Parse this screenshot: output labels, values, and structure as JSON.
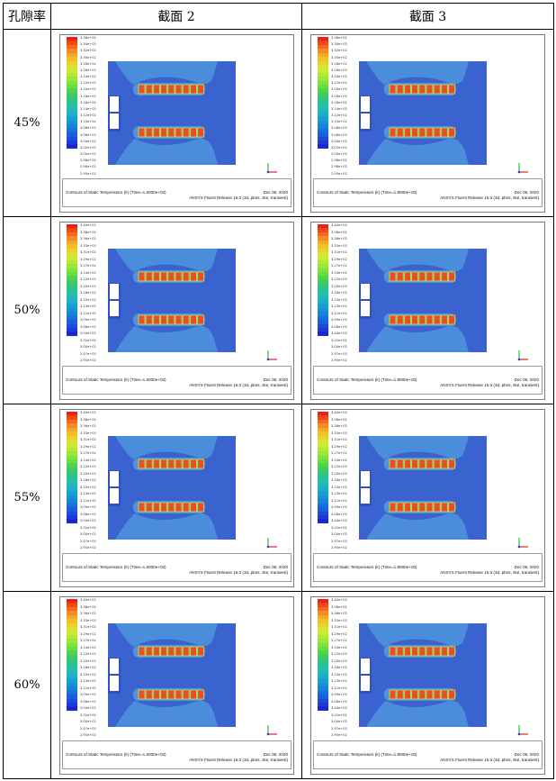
{
  "table": {
    "headers": [
      "孔隙率",
      "截面 2",
      "截面 3"
    ],
    "rows": [
      {
        "porosity": "45%"
      },
      {
        "porosity": "50%"
      },
      {
        "porosity": "55%"
      },
      {
        "porosity": "60%"
      }
    ]
  },
  "colorbar_colors": [
    "#e8231a",
    "#f2451a",
    "#f66a1e",
    "#f68a21",
    "#f3a926",
    "#efc22a",
    "#e9d42e",
    "#dde331",
    "#c8ea34",
    "#b0ec36",
    "#97e939",
    "#7fe43c",
    "#66dd40",
    "#4fd448",
    "#3fcb63",
    "#33c47e",
    "#2ac097",
    "#24bcab",
    "#1eb6bd",
    "#1aaec9",
    "#17a2d2",
    "#1593d8",
    "#1582dc",
    "#1770df",
    "#195edf",
    "#1b4bdc",
    "#1c39d6",
    "#1c28cf"
  ],
  "colorbar_sets": {
    "a": [
      "3.36e+02",
      "3.34e+02",
      "3.32e+02",
      "3.30e+02",
      "3.28e+02",
      "3.26e+02",
      "3.24e+02",
      "3.22e+02",
      "3.20e+02",
      "3.18e+02",
      "3.16e+02",
      "3.14e+02",
      "3.12e+02",
      "3.10e+02",
      "3.08e+02",
      "3.06e+02",
      "3.04e+02",
      "3.02e+02",
      "3.00e+02",
      "2.98e+02",
      "2.96e+02",
      "2.95e+02"
    ],
    "b": [
      "3.40e+02",
      "3.38e+02",
      "3.36e+02",
      "3.33e+02",
      "3.31e+02",
      "3.29e+02",
      "3.27e+02",
      "3.24e+02",
      "3.22e+02",
      "3.20e+02",
      "3.18e+02",
      "3.15e+02",
      "3.13e+02",
      "3.11e+02",
      "3.09e+02",
      "3.06e+02",
      "3.04e+02",
      "3.02e+02",
      "3.00e+02",
      "2.97e+02",
      "2.95e+02"
    ]
  },
  "colors": {
    "domain_bg": "#3a63cf",
    "domain_dark": "#2f4fc2",
    "plume": "#4b8ddb",
    "plume_light": "#63b3df",
    "fin_fill": "#e2512e",
    "fin_edge": "#c9e14a"
  },
  "footer": {
    "title": "Contours of Static Temperature (k)  (Time=1.8000e+03)",
    "date": "Dec 06, 2020",
    "release": "ANSYS Fluent Release 16.0 (3d, pbns, ske, transient)"
  },
  "panels": [
    {
      "row": 0,
      "col": 2,
      "scale": "a"
    },
    {
      "row": 0,
      "col": 3,
      "scale": "a"
    },
    {
      "row": 1,
      "col": 2,
      "scale": "b"
    },
    {
      "row": 1,
      "col": 3,
      "scale": "b"
    },
    {
      "row": 2,
      "col": 2,
      "scale": "b"
    },
    {
      "row": 2,
      "col": 3,
      "scale": "b"
    },
    {
      "row": 3,
      "col": 2,
      "scale": "b"
    },
    {
      "row": 3,
      "col": 3,
      "scale": "b"
    }
  ]
}
